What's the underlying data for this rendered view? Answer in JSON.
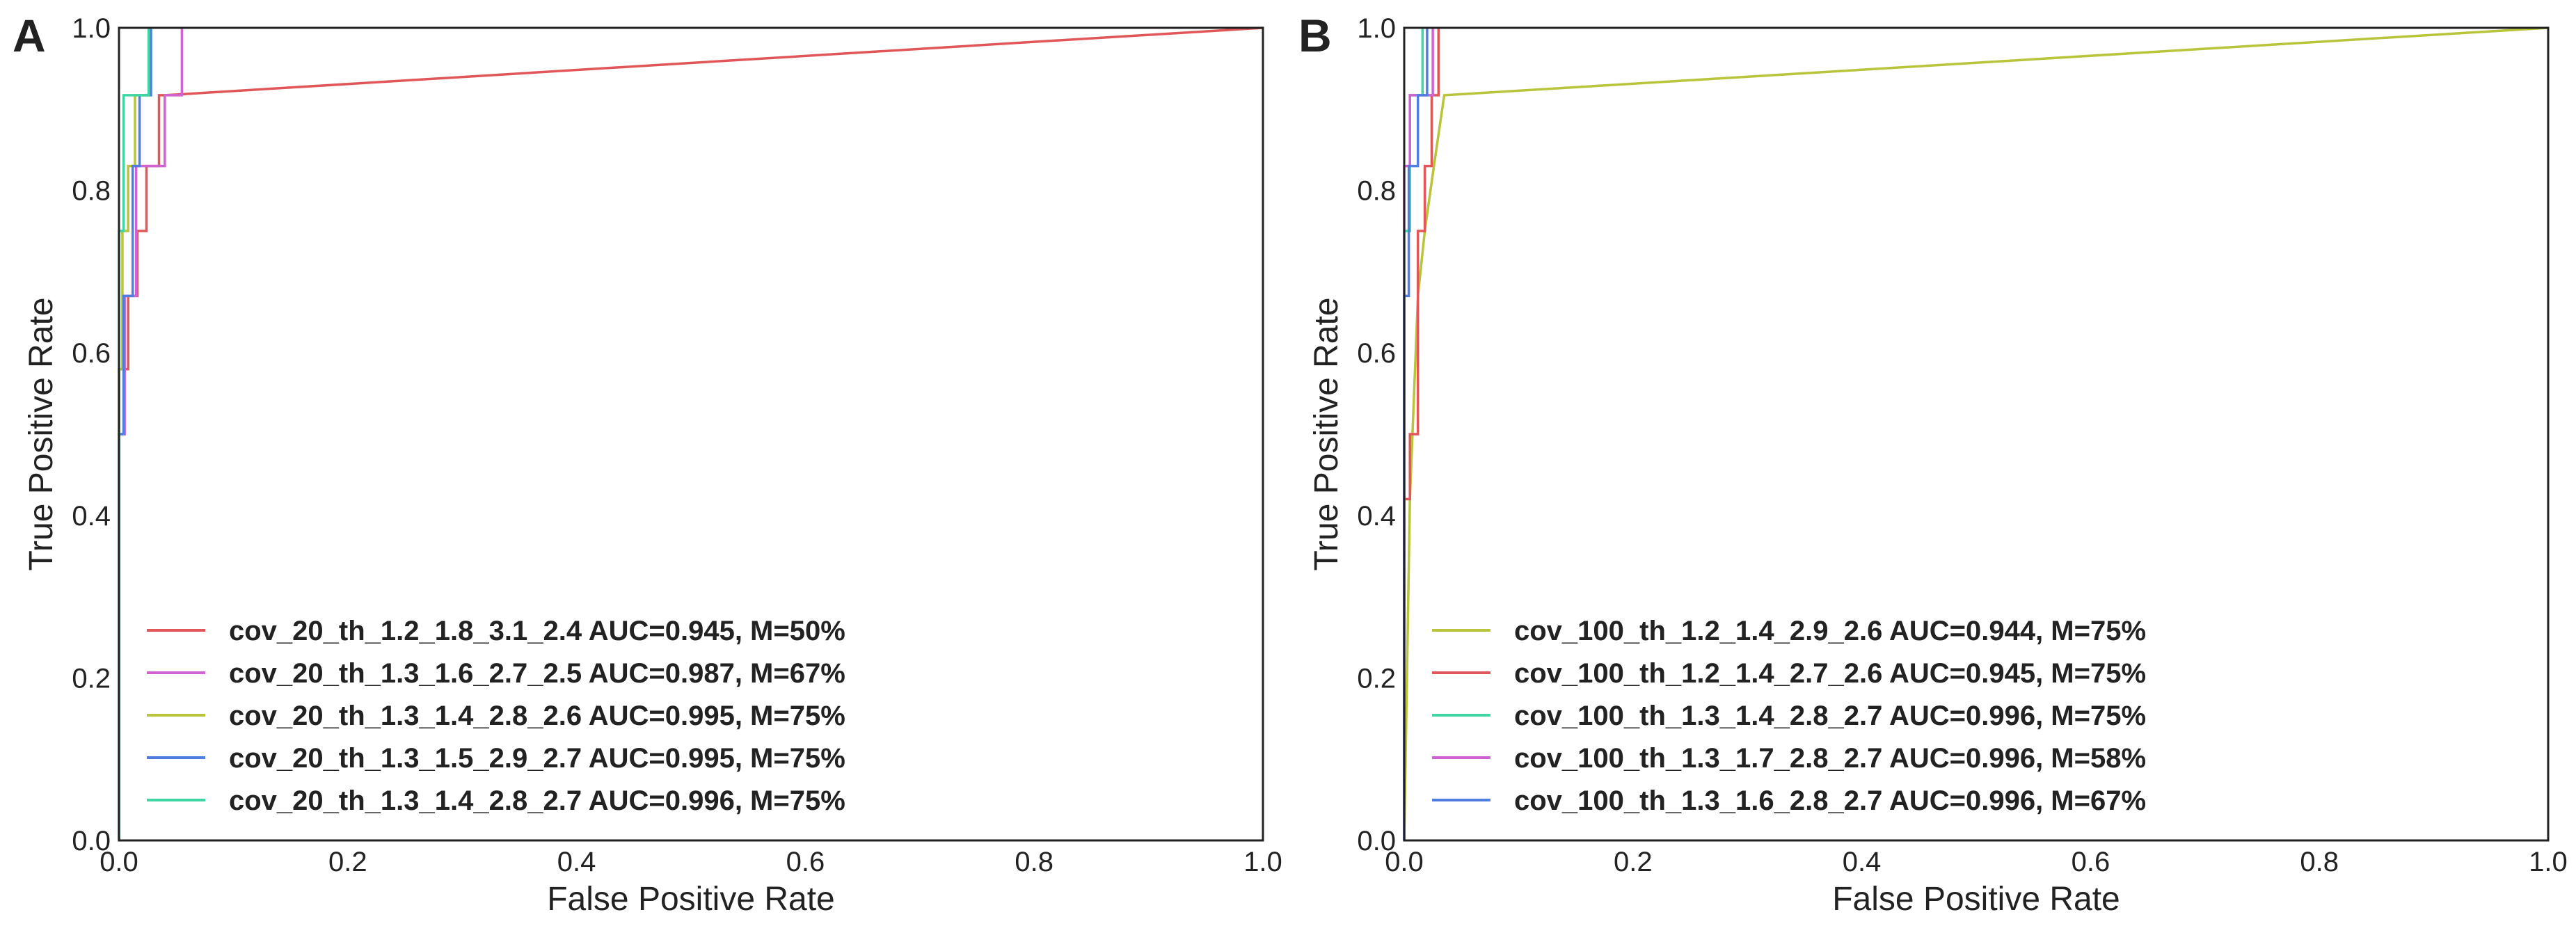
{
  "figure": {
    "description": "Two ROC curve panels"
  },
  "chart_data": [
    {
      "type": "line",
      "panel": "A",
      "title": "",
      "xlabel": "False Positive Rate",
      "ylabel": "True Positive Rate",
      "xlim": [
        0.0,
        1.0
      ],
      "ylim": [
        0.0,
        1.0
      ],
      "xticks": [
        "0.0",
        "0.2",
        "0.4",
        "0.6",
        "0.8",
        "1.0"
      ],
      "yticks": [
        "0.0",
        "0.2",
        "0.4",
        "0.6",
        "0.8",
        "1.0"
      ],
      "grid": false,
      "legend_position": "lower-left",
      "series": [
        {
          "name": "cov_20_th_1.2_1.8_3.1_2.4 AUC=0.945, M=50%",
          "color": "#e15759",
          "x": [
            0,
            0,
            0.008,
            0.008,
            0.016,
            0.016,
            0.024,
            0.024,
            0.035,
            0.035,
            0.04,
            1.0
          ],
          "y": [
            0,
            0.58,
            0.58,
            0.67,
            0.67,
            0.75,
            0.75,
            0.83,
            0.83,
            0.917,
            0.917,
            1.0
          ]
        },
        {
          "name": "cov_20_th_1.3_1.6_2.7_2.5 AUC=0.987, M=67%",
          "color": "#d062d2",
          "x": [
            0,
            0,
            0.005,
            0.005,
            0.015,
            0.015,
            0.03,
            0.03,
            0.04,
            0.04,
            0.055,
            0.055
          ],
          "y": [
            0,
            0.5,
            0.5,
            0.67,
            0.67,
            0.83,
            0.83,
            0.83,
            0.83,
            0.917,
            0.917,
            1.0
          ]
        },
        {
          "name": "cov_20_th_1.3_1.4_2.8_2.6 AUC=0.995, M=75%",
          "color": "#b8c43a",
          "x": [
            0,
            0,
            0.003,
            0.003,
            0.008,
            0.008,
            0.014,
            0.014,
            0.02,
            0.02,
            0.026,
            0.026
          ],
          "y": [
            0,
            0.58,
            0.58,
            0.75,
            0.75,
            0.83,
            0.83,
            0.917,
            0.917,
            0.917,
            0.917,
            1.0
          ]
        },
        {
          "name": "cov_20_th_1.3_1.5_2.9_2.7 AUC=0.995, M=75%",
          "color": "#4f7ee0",
          "x": [
            0,
            0,
            0.004,
            0.004,
            0.012,
            0.012,
            0.018,
            0.018,
            0.024,
            0.024,
            0.028,
            0.028
          ],
          "y": [
            0,
            0.5,
            0.5,
            0.67,
            0.67,
            0.83,
            0.83,
            0.917,
            0.917,
            0.917,
            0.917,
            1.0
          ]
        },
        {
          "name": "cov_20_th_1.3_1.4_2.8_2.7 AUC=0.996, M=75%",
          "color": "#3fd6a4",
          "x": [
            0,
            0,
            0.004,
            0.004,
            0.01,
            0.01,
            0.026,
            0.026
          ],
          "y": [
            0,
            0.75,
            0.75,
            0.917,
            0.917,
            0.917,
            0.917,
            1.0
          ]
        }
      ]
    },
    {
      "type": "line",
      "panel": "B",
      "title": "",
      "xlabel": "False Positive Rate",
      "ylabel": "True Positive Rate",
      "xlim": [
        0.0,
        1.0
      ],
      "ylim": [
        0.0,
        1.0
      ],
      "xticks": [
        "0.0",
        "0.2",
        "0.4",
        "0.6",
        "0.8",
        "1.0"
      ],
      "yticks": [
        "0.0",
        "0.2",
        "0.4",
        "0.6",
        "0.8",
        "1.0"
      ],
      "grid": false,
      "legend_position": "lower-left",
      "series": [
        {
          "name": "cov_100_th_1.2_1.4_2.9_2.6 AUC=0.944, M=75%",
          "color": "#b8c43a",
          "x": [
            0,
            0.005,
            0.005,
            0.012,
            0.012,
            0.018,
            0.018,
            0.026,
            0.026,
            0.035,
            0.035,
            1.0
          ],
          "y": [
            0,
            0.42,
            0.42,
            0.67,
            0.67,
            0.75,
            0.75,
            0.83,
            0.83,
            0.917,
            0.917,
            1.0
          ]
        },
        {
          "name": "cov_100_th_1.2_1.4_2.7_2.6 AUC=0.945, M=75%",
          "color": "#e15759",
          "x": [
            0,
            0,
            0.005,
            0.005,
            0.012,
            0.012,
            0.018,
            0.018,
            0.024,
            0.024,
            0.03,
            0.03
          ],
          "y": [
            0,
            0.42,
            0.42,
            0.5,
            0.5,
            0.75,
            0.75,
            0.83,
            0.83,
            0.917,
            0.917,
            1.0
          ]
        },
        {
          "name": "cov_100_th_1.3_1.4_2.8_2.7 AUC=0.996, M=75%",
          "color": "#3fd6a4",
          "x": [
            0,
            0,
            0.005,
            0.005,
            0.01,
            0.01,
            0.016,
            0.016
          ],
          "y": [
            0,
            0.75,
            0.75,
            0.917,
            0.917,
            0.917,
            0.917,
            1.0
          ]
        },
        {
          "name": "cov_100_th_1.3_1.7_2.8_2.7 AUC=0.996, M=58%",
          "color": "#d062d2",
          "x": [
            0,
            0,
            0.005,
            0.005,
            0.012,
            0.012,
            0.025,
            0.025
          ],
          "y": [
            0,
            0.83,
            0.83,
            0.917,
            0.917,
            0.917,
            0.917,
            1.0
          ]
        },
        {
          "name": "cov_100_th_1.3_1.6_2.8_2.7 AUC=0.996, M=67%",
          "color": "#4f7ee0",
          "x": [
            0,
            0,
            0.004,
            0.004,
            0.012,
            0.012,
            0.02,
            0.02
          ],
          "y": [
            0,
            0.67,
            0.67,
            0.83,
            0.83,
            0.917,
            0.917,
            1.0
          ]
        }
      ]
    }
  ]
}
